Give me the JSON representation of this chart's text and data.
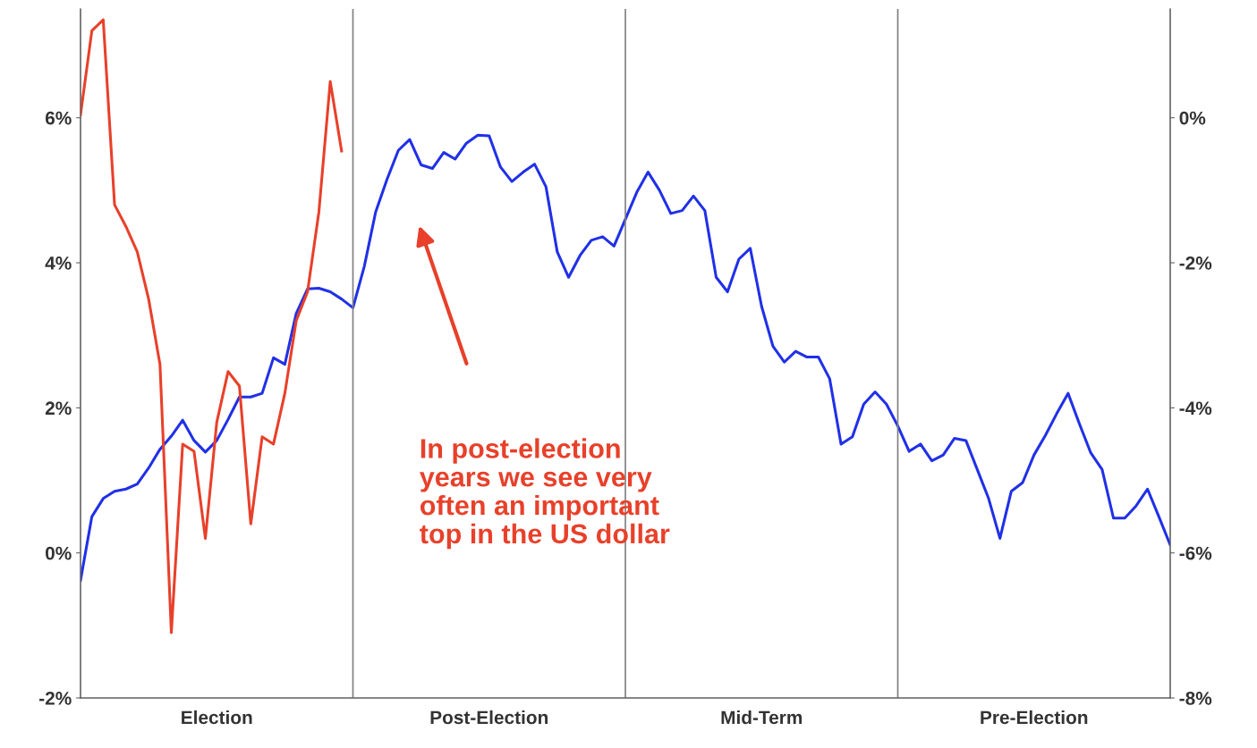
{
  "chart_data": {
    "type": "line",
    "categories": [
      null,
      null,
      null,
      null,
      null,
      null,
      null,
      null,
      null,
      null,
      null,
      null,
      "Election",
      null,
      null,
      null,
      null,
      null,
      null,
      null,
      null,
      null,
      null,
      null,
      null,
      null,
      null,
      null,
      null,
      null,
      null,
      null,
      null,
      null,
      null,
      null,
      "Post-Election",
      null,
      null,
      null,
      null,
      null,
      null,
      null,
      null,
      null,
      null,
      null,
      null,
      null,
      null,
      null,
      null,
      null,
      null,
      null,
      null,
      null,
      null,
      null,
      "Mid-Term",
      null,
      null,
      null,
      null,
      null,
      null,
      null,
      null,
      null,
      null,
      null,
      null,
      null,
      null,
      null,
      null,
      null,
      null,
      null,
      null,
      null,
      null,
      null,
      "Pre-Election",
      null,
      null,
      null,
      null,
      null,
      null,
      null,
      null,
      null,
      null,
      null,
      null
    ],
    "ylim": [
      -2,
      7.5
    ],
    "yticks": [
      {
        "value": -2,
        "label": "-2%"
      },
      {
        "value": 0,
        "label": "0%"
      },
      {
        "value": 2,
        "label": "2%"
      },
      {
        "value": 4,
        "label": "4%"
      },
      {
        "value": 6,
        "label": "6%"
      }
    ],
    "y2lim": [
      -8,
      1.5
    ],
    "y2ticks": [
      {
        "value": -8,
        "label": "-8%"
      },
      {
        "value": -6,
        "label": "-6%"
      },
      {
        "value": -4,
        "label": "-4%"
      },
      {
        "value": -2,
        "label": "-2%"
      },
      {
        "value": 0,
        "label": "0%"
      }
    ],
    "grid": false,
    "legend": false,
    "marker": "none",
    "line_style": "solid",
    "annotations": [
      "In post-election\nyears we see very\noften an important\ntop in the US dollar"
    ],
    "series": [
      {
        "color": "#2030e8",
        "values": [
          -0.38,
          0.5,
          0.75,
          0.85,
          0.88,
          0.95,
          1.17,
          1.43,
          1.61,
          1.83,
          1.55,
          1.39,
          1.55,
          1.84,
          2.15,
          2.15,
          2.2,
          2.69,
          2.6,
          3.3,
          3.64,
          3.65,
          3.6,
          3.5,
          3.38,
          3.95,
          4.7,
          5.15,
          5.55,
          5.7,
          5.35,
          5.3,
          5.52,
          5.43,
          5.65,
          5.76,
          5.75,
          5.32,
          5.12,
          5.25,
          5.36,
          5.05,
          4.15,
          3.8,
          4.1,
          4.31,
          4.36,
          4.23,
          4.6,
          4.97,
          5.25,
          5.0,
          4.68,
          4.72,
          4.92,
          4.72,
          3.8,
          3.6,
          4.05,
          4.2,
          3.4,
          2.85,
          2.63,
          2.78,
          2.7,
          2.7,
          2.4,
          1.5,
          1.6,
          2.05,
          2.22,
          2.05,
          1.75,
          1.4,
          1.5,
          1.27,
          1.35,
          1.58,
          1.55,
          1.15,
          0.75,
          0.2,
          0.85,
          0.97,
          1.35,
          1.62,
          1.92,
          2.2,
          1.78,
          1.38,
          1.15,
          0.48,
          0.48,
          0.65,
          0.88,
          0.5,
          0.11
        ]
      },
      {
        "color": "#e8402a",
        "axis": "y2",
        "values": [
          0.04,
          1.2,
          1.35,
          -1.2,
          -1.5,
          -1.85,
          -2.5,
          -3.4,
          -7.1,
          -4.5,
          -4.6,
          -5.8,
          -4.2,
          -3.5,
          -3.7,
          -5.6,
          -4.4,
          -4.5,
          -3.8,
          -2.8,
          -2.4,
          -1.3,
          0.5,
          -0.46,
          null,
          null,
          null,
          null,
          null,
          null,
          null,
          null,
          null,
          null,
          null,
          null,
          null,
          null,
          null,
          null,
          null,
          null,
          null,
          null,
          null,
          null,
          null,
          null,
          null,
          null,
          null,
          null,
          null,
          null,
          null,
          null,
          null,
          null,
          null,
          null,
          null,
          null,
          null,
          null,
          null,
          null,
          null,
          null,
          null,
          null,
          null,
          null,
          null,
          null,
          null,
          null,
          null,
          null,
          null,
          null,
          null,
          null,
          null,
          null,
          null,
          null,
          null,
          null,
          null,
          null,
          null,
          null,
          null,
          null,
          null,
          null,
          null
        ]
      }
    ]
  }
}
